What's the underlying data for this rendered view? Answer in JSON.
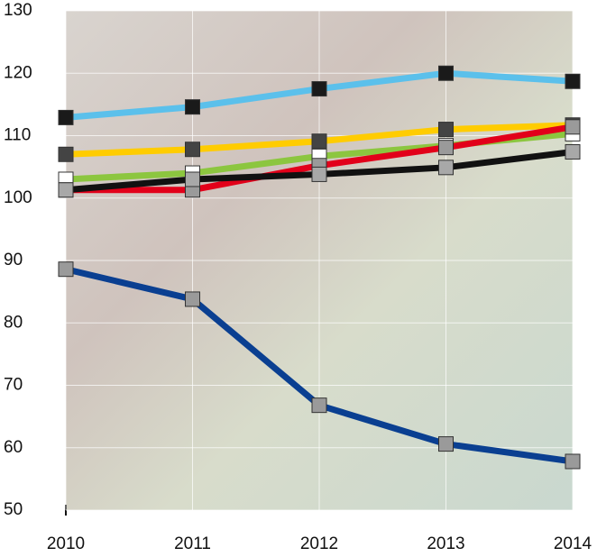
{
  "chart_data": {
    "type": "line",
    "categories": [
      "2010",
      "2011",
      "2012",
      "2013",
      "2014"
    ],
    "series": [
      {
        "color": "#5bc0eb",
        "marker_color": "#1a1a1a",
        "values": [
          112.9,
          114.6,
          117.5,
          120,
          118.7
        ]
      },
      {
        "color": "#ffcc00",
        "marker_color": "#444444",
        "values": [
          107,
          107.8,
          109.1,
          111,
          111.7
        ]
      },
      {
        "color": "#8cc63f",
        "marker_color": "#ffffff",
        "values": [
          103,
          104,
          106.7,
          108.4,
          110.3
        ]
      },
      {
        "color": "#e2001a",
        "marker_color": "#9a9a9a",
        "values": [
          101.3,
          101.3,
          105.2,
          108.1,
          111.4
        ]
      },
      {
        "color": "#111111",
        "marker_color": "#a8a8a8",
        "values": [
          101.3,
          103,
          103.8,
          104.9,
          107.4
        ]
      },
      {
        "color": "#0a3f91",
        "marker_color": "#9a9a9a",
        "values": [
          88.6,
          83.8,
          66.8,
          60.6,
          57.8
        ]
      }
    ],
    "ylim": [
      50,
      130
    ],
    "yticks": [
      50,
      60,
      70,
      80,
      90,
      100,
      110,
      120,
      130
    ],
    "grid": true
  }
}
